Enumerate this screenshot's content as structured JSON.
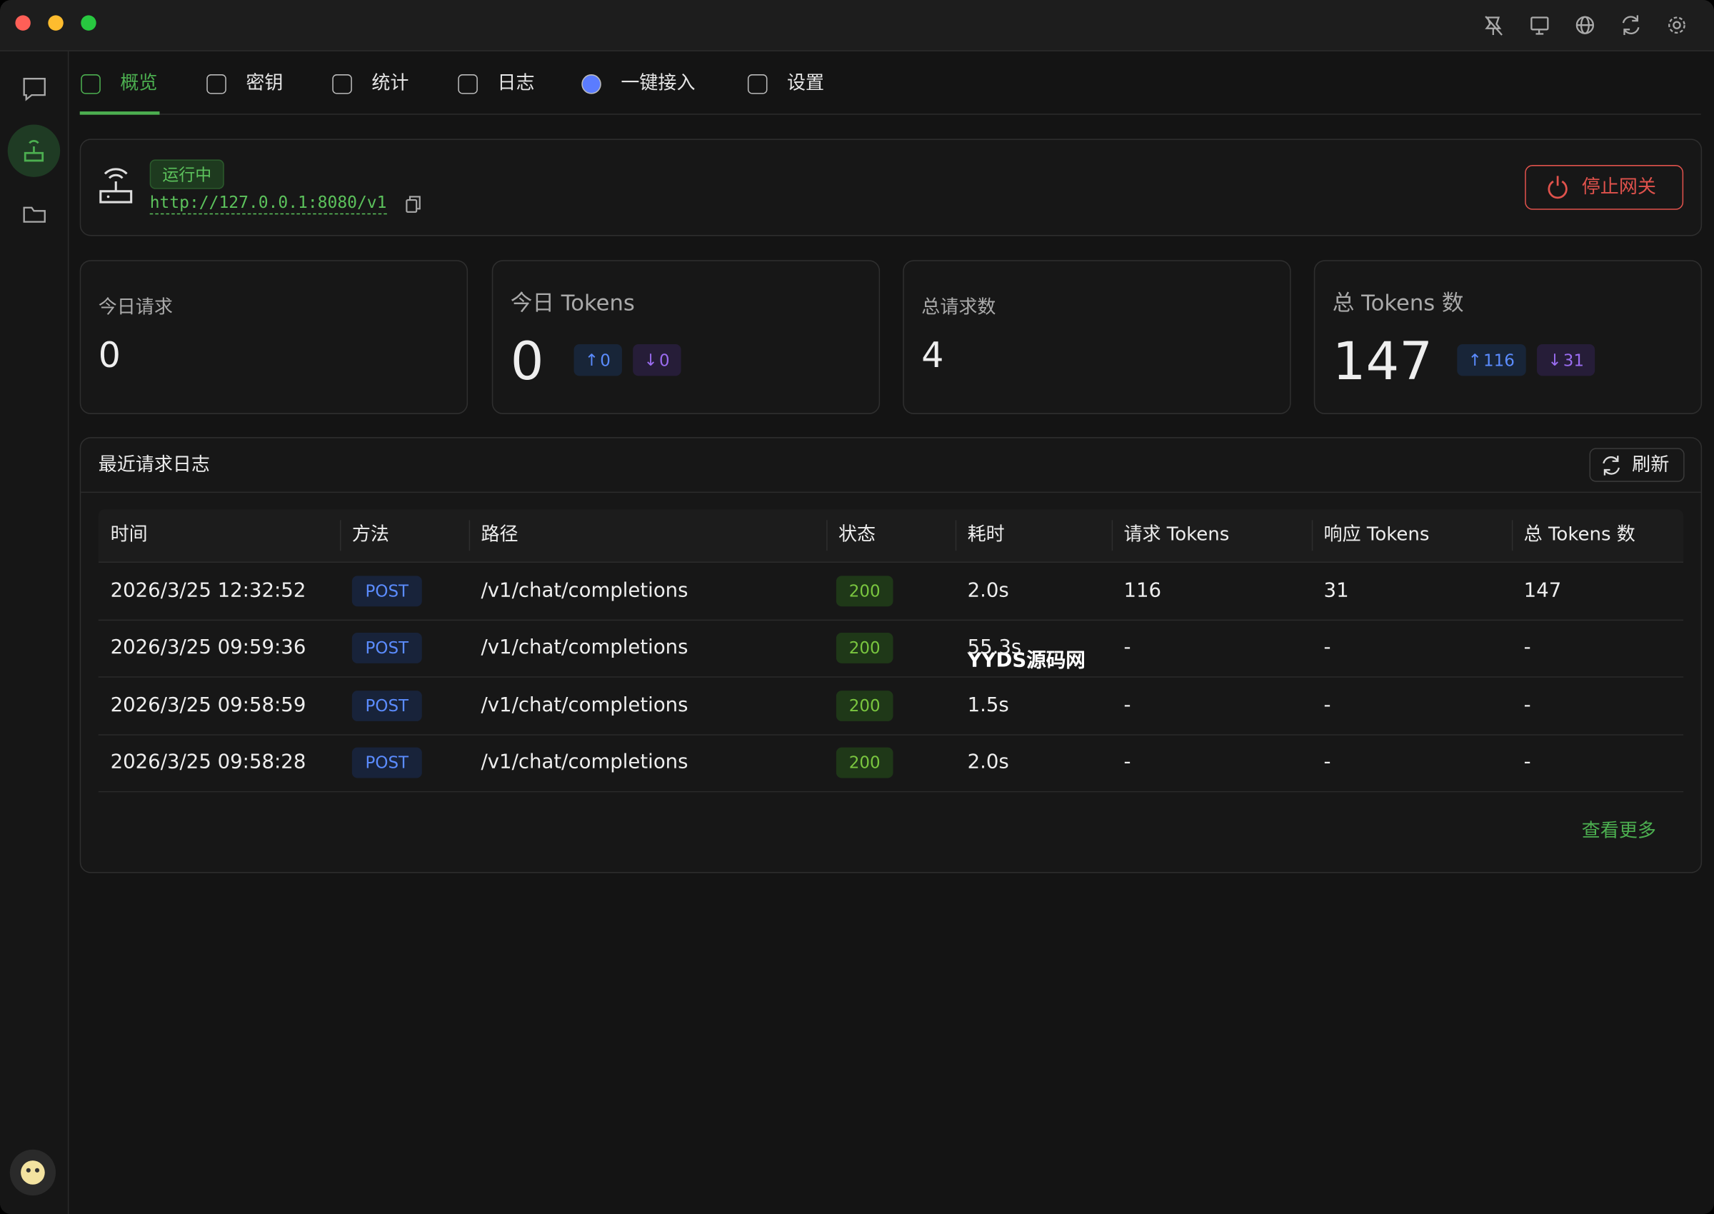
{
  "tabs": [
    "概览",
    "密钥",
    "统计",
    "日志",
    "一键接入",
    "设置"
  ],
  "gateway": {
    "status": "运行中",
    "url": "http://127.0.0.1:8080/v1",
    "stop_button": "停止网关"
  },
  "stats": [
    {
      "label": "今日请求",
      "value": "0"
    },
    {
      "label": "今日 Tokens",
      "value": "0",
      "up": "0",
      "down": "0"
    },
    {
      "label": "总请求数",
      "value": "4"
    },
    {
      "label": "总 Tokens 数",
      "value": "147",
      "up": "116",
      "down": "31"
    }
  ],
  "logs": {
    "title": "最近请求日志",
    "refresh": "刷新",
    "columns": [
      "时间",
      "方法",
      "路径",
      "状态",
      "耗时",
      "请求 Tokens",
      "响应 Tokens",
      "总 Tokens 数"
    ],
    "rows": [
      [
        "2026/3/25 12:32:52",
        "POST",
        "/v1/chat/completions",
        "200",
        "2.0s",
        "116",
        "31",
        "147"
      ],
      [
        "2026/3/25 09:59:36",
        "POST",
        "/v1/chat/completions",
        "200",
        "55.3s",
        "-",
        "-",
        "-"
      ],
      [
        "2026/3/25 09:58:59",
        "POST",
        "/v1/chat/completions",
        "200",
        "1.5s",
        "-",
        "-",
        "-"
      ],
      [
        "2026/3/25 09:58:28",
        "POST",
        "/v1/chat/completions",
        "200",
        "2.0s",
        "-",
        "-",
        "-"
      ]
    ],
    "more": "查看更多"
  },
  "watermark": "YYDS源码网"
}
